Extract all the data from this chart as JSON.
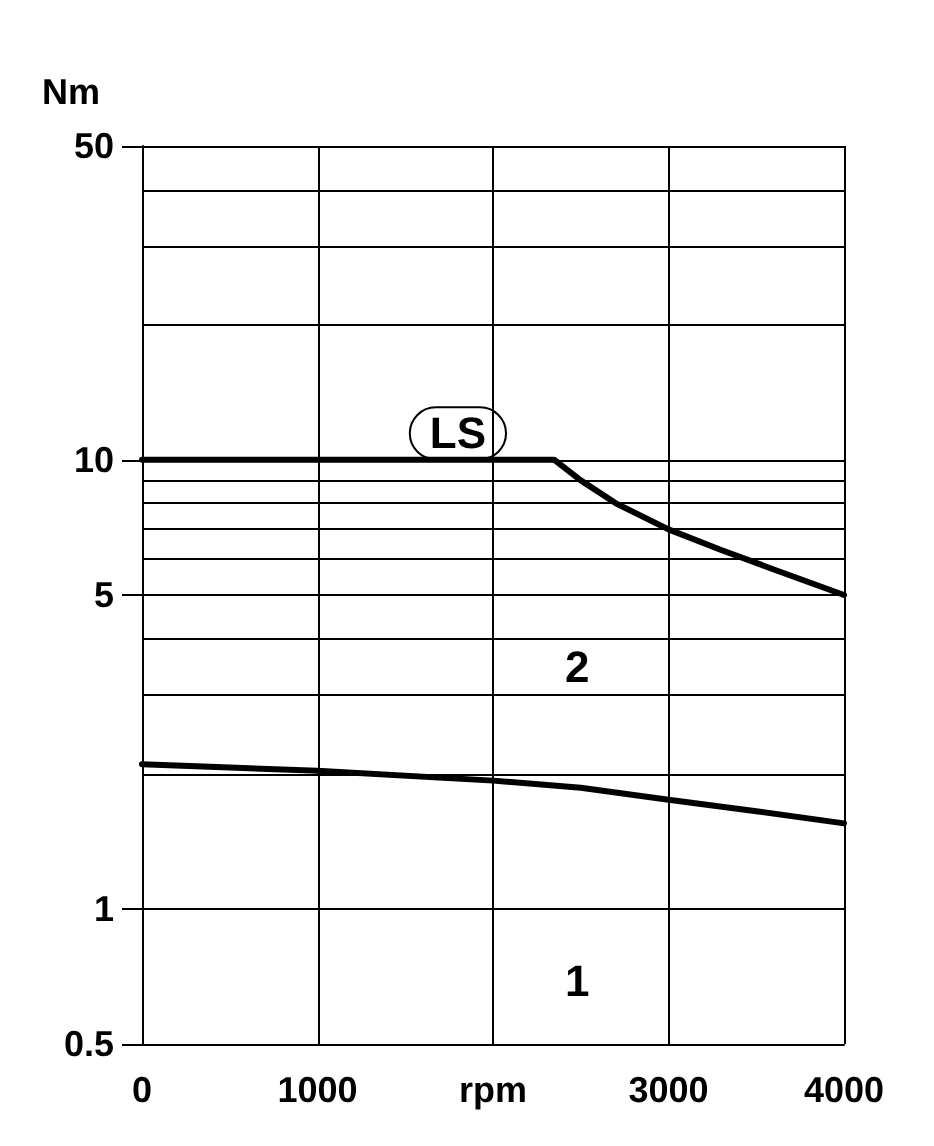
{
  "chart_data": {
    "type": "line",
    "ylabel": "Nm",
    "log": "y",
    "grid": true,
    "marker": "none",
    "line_style": "solid",
    "xlim": [
      0,
      4000
    ],
    "xticks": [
      0,
      1000,
      {
        "value": 2000,
        "label": "rpm"
      },
      3000,
      4000
    ],
    "ylim": [
      0.5,
      50
    ],
    "yticks": [
      0.5,
      1,
      {
        "value": 2,
        "label": null
      },
      {
        "value": 3,
        "label": null
      },
      {
        "value": 4,
        "label": null
      },
      5,
      {
        "value": 6,
        "label": null
      },
      {
        "value": 7,
        "label": null
      },
      {
        "value": 8,
        "label": null
      },
      {
        "value": 9,
        "label": null
      },
      10,
      {
        "value": 20,
        "label": null
      },
      {
        "value": 30,
        "label": null
      },
      {
        "value": 40,
        "label": null
      },
      50
    ],
    "series": [
      {
        "color": "#000000",
        "x": [
          0,
          1000,
          2000,
          2350,
          2500,
          2700,
          3000,
          3300,
          3600,
          4000
        ],
        "values": [
          10,
          10,
          10,
          10,
          9,
          8,
          7,
          6.3,
          5.7,
          5
        ]
      },
      {
        "color": "#000000",
        "x": [
          0,
          1000,
          2000,
          2500,
          3000,
          3500,
          4000
        ],
        "values": [
          2.1,
          2.03,
          1.93,
          1.86,
          1.75,
          1.65,
          1.55
        ]
      }
    ],
    "annotations": [
      "LS",
      "2",
      "1"
    ]
  }
}
